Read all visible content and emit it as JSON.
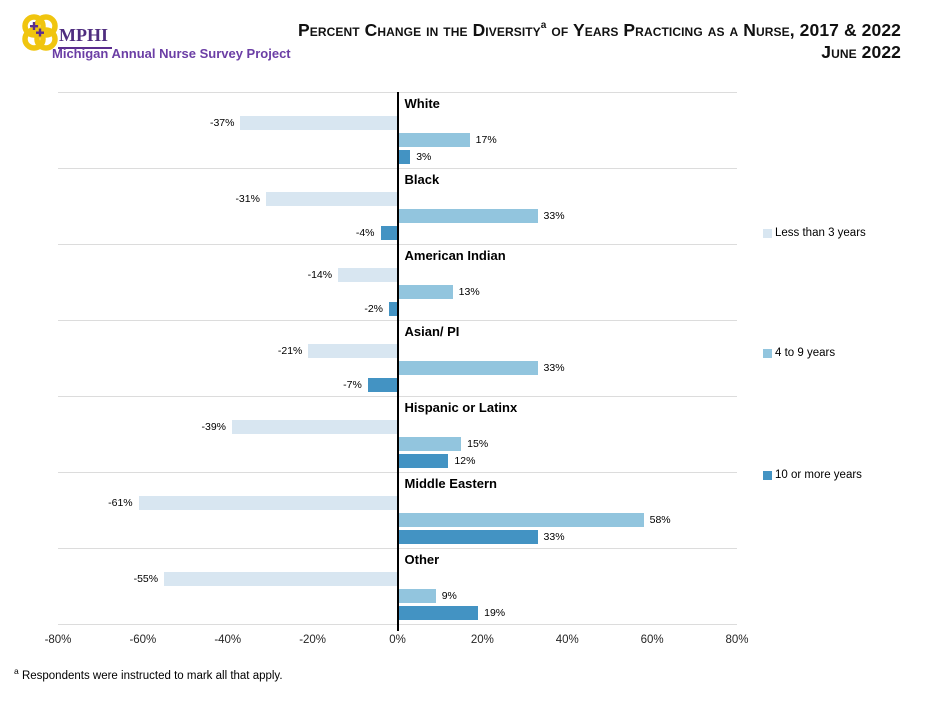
{
  "header": {
    "logo": {
      "acronym": "MPHI",
      "subtitle": "Michigan Annual Nurse Survey Project",
      "brand_purple": "#5B2D8E",
      "brand_gold": "#F0C50F"
    },
    "title": {
      "part1": "Percent Change in the Diversity",
      "superscript": "a",
      "part2": " of Years Practicing as a Nurse, 2017 & 2022",
      "line2": "June 2022"
    }
  },
  "chart_data": {
    "type": "bar",
    "orientation": "horizontal",
    "categories": [
      "White",
      "Black",
      "American Indian",
      "Asian/ PI",
      "Hispanic or Latinx",
      "Middle Eastern",
      "Other"
    ],
    "series": [
      {
        "name": "Less than 3 years",
        "color": "#D8E6F1",
        "values": [
          -37,
          -31,
          -14,
          -21,
          -39,
          -61,
          -55
        ]
      },
      {
        "name": "4 to 9 years",
        "color": "#92C5DE",
        "values": [
          17,
          33,
          13,
          33,
          15,
          58,
          9
        ]
      },
      {
        "name": "10 or more years",
        "color": "#4393C3",
        "values": [
          3,
          -4,
          -2,
          -7,
          12,
          33,
          19
        ]
      }
    ],
    "value_suffix": "%",
    "xlim": [
      -80,
      80
    ],
    "x_tick_labels": [
      "-80%",
      "-60%",
      "-40%",
      "-20%",
      "0%",
      "20%",
      "40%",
      "60%",
      "80%"
    ],
    "grid": "horizontal-category-separators",
    "legend_position": "right"
  },
  "footnote": {
    "marker": "a",
    "text": "Respondents were instructed to mark all that apply."
  }
}
